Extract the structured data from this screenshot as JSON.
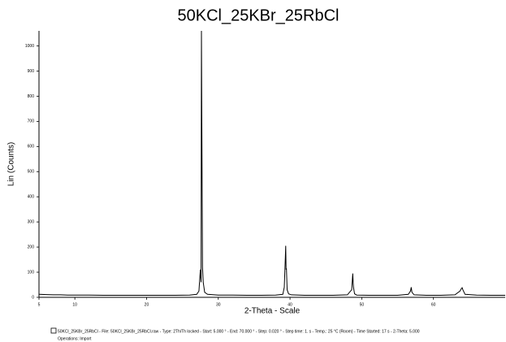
{
  "chart_data": {
    "type": "line",
    "title": "50KCl_25KBr_25RbCl",
    "x_label": "2-Theta - Scale",
    "y_label": "Lin (Counts)",
    "x": [
      5,
      6,
      7,
      8,
      9,
      10,
      12,
      14,
      16,
      18,
      20,
      22,
      24,
      26,
      27,
      27.3,
      27.5,
      27.6,
      27.65,
      27.7,
      27.75,
      27.8,
      27.9,
      28.1,
      28.5,
      30,
      32,
      34,
      36,
      38,
      39,
      39.2,
      39.35,
      39.4,
      39.45,
      39.5,
      39.6,
      39.8,
      40.2,
      42,
      44,
      46,
      48,
      48.6,
      48.75,
      48.8,
      48.85,
      49,
      49.3,
      51,
      53,
      55,
      56.5,
      56.8,
      56.9,
      57,
      57.3,
      59,
      61,
      63,
      63.7,
      63.9,
      64.0,
      64.1,
      64.4,
      66,
      68,
      70
    ],
    "series": [
      {
        "name": "50KCl_25KBr_25RbCl - File: 50KCl_25KBr_25RbCl.raw - Type: 2Th/Th locked - Start: 5.000 ° - End: 70.000 ° - Step: 0.020 ° - Step time: 1. s - Temp.: 25 °C (Room) - Time Started: 17 s - 2-Theta: 5.000",
        "color": "#000000",
        "values": [
          12,
          11,
          10,
          10,
          9,
          9,
          9,
          8,
          8,
          8,
          8,
          8,
          8,
          9,
          12,
          25,
          110,
          60,
          1060,
          720,
          400,
          120,
          60,
          20,
          12,
          9,
          9,
          8,
          8,
          9,
          12,
          40,
          160,
          205,
          110,
          115,
          30,
          14,
          10,
          8,
          8,
          8,
          10,
          30,
          95,
          60,
          40,
          14,
          9,
          8,
          8,
          8,
          12,
          25,
          40,
          20,
          10,
          8,
          8,
          10,
          25,
          35,
          38,
          30,
          12,
          9,
          8,
          8
        ]
      }
    ],
    "legend_note": "Operations: Import",
    "xlim": [
      5,
      70
    ],
    "ylim": [
      0,
      1060
    ],
    "xticks": [
      5,
      10,
      20,
      30,
      40,
      50,
      60
    ],
    "yticks": [
      0,
      100,
      200,
      300,
      400,
      500,
      600,
      700,
      800,
      900,
      1000
    ]
  }
}
